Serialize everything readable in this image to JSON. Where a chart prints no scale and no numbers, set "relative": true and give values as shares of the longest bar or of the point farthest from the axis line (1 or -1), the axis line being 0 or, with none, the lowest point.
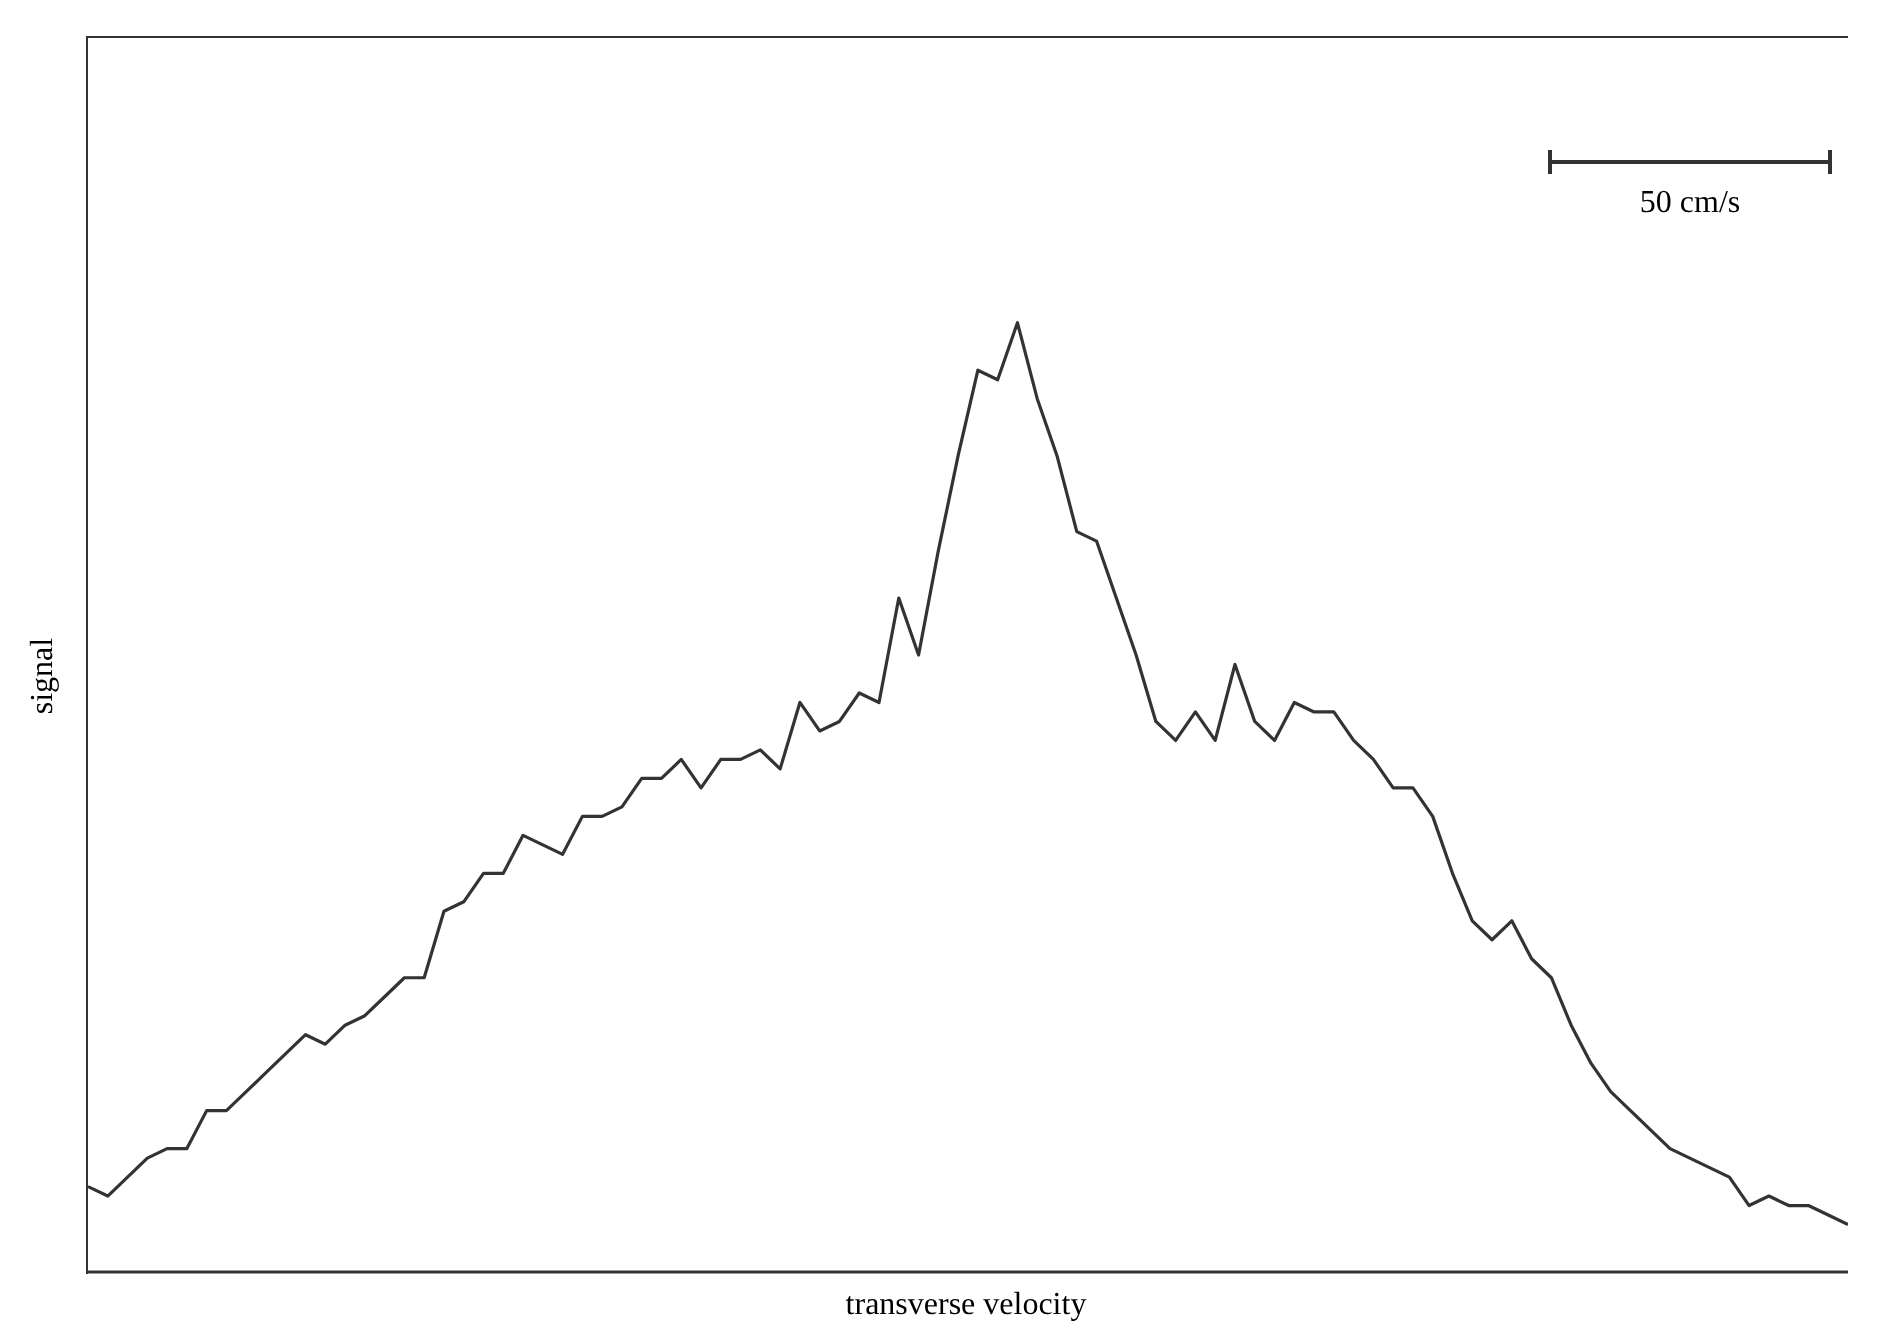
{
  "chart_data": {
    "type": "line",
    "xlabel": "transverse velocity",
    "ylabel": "signal",
    "relative": true,
    "annotations": [
      "50 cm/s"
    ],
    "categories": [
      null,
      null,
      null,
      null,
      null,
      null,
      null,
      null,
      null,
      null,
      null,
      null,
      null,
      null,
      null,
      null,
      null,
      null,
      null,
      null,
      null,
      null,
      null,
      null,
      null,
      null,
      null,
      null,
      null,
      null,
      null,
      null,
      null,
      null,
      null,
      null,
      null,
      null,
      null,
      null,
      null,
      null,
      null,
      null,
      null,
      null,
      null,
      null,
      null,
      null,
      null,
      null,
      null,
      null,
      null,
      null,
      null,
      null,
      null,
      null,
      null,
      null,
      null,
      null,
      null,
      null,
      null,
      null,
      null,
      null,
      null,
      null,
      null,
      null,
      null,
      null,
      null,
      null,
      null,
      null,
      null,
      null,
      null,
      null,
      null,
      null,
      null,
      null,
      null,
      null
    ],
    "series": [
      {
        "color": "#333333",
        "values": [
          0.09,
          0.08,
          0.1,
          0.12,
          0.13,
          0.13,
          0.17,
          0.17,
          0.19,
          0.21,
          0.23,
          0.25,
          0.24,
          0.26,
          0.27,
          0.29,
          0.31,
          0.31,
          0.38,
          0.39,
          0.42,
          0.42,
          0.46,
          0.45,
          0.44,
          0.48,
          0.48,
          0.49,
          0.52,
          0.52,
          0.54,
          0.51,
          0.54,
          0.54,
          0.55,
          0.53,
          0.6,
          0.57,
          0.58,
          0.61,
          0.6,
          0.71,
          0.65,
          0.76,
          0.86,
          0.95,
          0.94,
          1,
          0.92,
          0.86,
          0.78,
          0.77,
          0.71,
          0.65,
          0.58,
          0.56,
          0.59,
          0.56,
          0.64,
          0.58,
          0.56,
          0.6,
          0.59,
          0.59,
          0.56,
          0.54,
          0.51,
          0.51,
          0.48,
          0.42,
          0.37,
          0.35,
          0.37,
          0.33,
          0.31,
          0.26,
          0.22,
          0.19,
          0.17,
          0.15,
          0.13,
          0.12,
          0.11,
          0.1,
          0.07,
          0.08,
          0.07,
          0.07,
          0.06,
          0.05
        ]
      }
    ]
  }
}
